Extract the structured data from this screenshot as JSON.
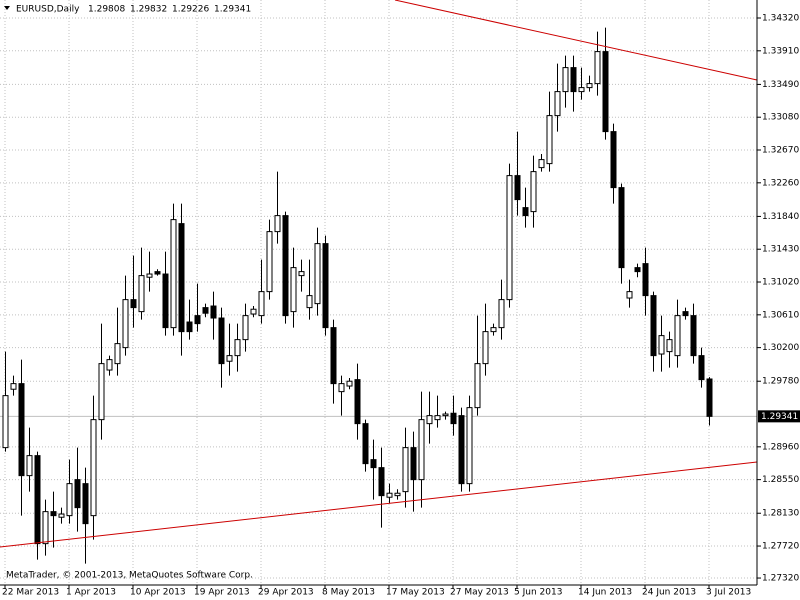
{
  "chart_data": {
    "type": "candlestick",
    "title": "EURUSD,Daily",
    "footer": "MetaTrader, © 2001-2013, MetaQuotes Software Corp.",
    "categories": [
      "22 Mar 2013",
      null,
      null,
      null,
      null,
      null,
      null,
      null,
      "1 Apr 2013",
      null,
      null,
      null,
      null,
      null,
      null,
      null,
      "10 Apr 2013",
      null,
      null,
      null,
      null,
      null,
      null,
      null,
      "19 Apr 2013",
      null,
      null,
      null,
      null,
      null,
      null,
      null,
      "29 Apr 2013",
      null,
      null,
      null,
      null,
      null,
      null,
      null,
      "8 May 2013",
      null,
      null,
      null,
      null,
      null,
      null,
      null,
      "17 May 2013",
      null,
      null,
      null,
      null,
      null,
      null,
      null,
      "27 May 2013",
      null,
      null,
      null,
      null,
      null,
      null,
      null,
      "5 Jun 2013",
      null,
      null,
      null,
      null,
      null,
      null,
      null,
      "14 Jun 2013",
      null,
      null,
      null,
      null,
      null,
      null,
      null,
      "24 Jun 2013",
      null,
      null,
      null,
      null,
      null,
      null,
      null,
      "3 Jul 2013"
    ],
    "open": [
      1.2895,
      1.2968,
      1.2975,
      1.286,
      1.2885,
      1.2775,
      1.2815,
      1.2808,
      1.281,
      1.2855,
      1.285,
      1.281,
      1.293,
      1.2992,
      1.3,
      1.302,
      1.308,
      1.3065,
      1.3108,
      1.3115,
      1.3112,
      1.3045,
      1.3175,
      1.3052,
      1.306,
      1.307,
      1.3072,
      1.3057,
      1.3003,
      1.301,
      1.303,
      1.3062,
      1.306,
      1.309,
      1.3165,
      1.3185,
      1.3065,
      1.311,
      1.307,
      1.3075,
      1.315,
      1.3045,
      1.2965,
      1.2972,
      1.298,
      1.2925,
      1.288,
      1.287,
      1.2833,
      1.2835,
      1.284,
      1.2895,
      1.2855,
      1.2925,
      1.293,
      1.2935,
      1.2938,
      1.2935,
      1.285,
      1.2945,
      1.3,
      1.304,
      1.3045,
      1.308,
      1.3235,
      1.3195,
      1.319,
      1.3245,
      1.325,
      1.331,
      1.334,
      1.337,
      1.334,
      1.3345,
      1.335,
      1.339,
      1.329,
      1.322,
      1.3082,
      1.312,
      1.3125,
      1.3085,
      1.3012,
      1.3015,
      1.301,
      1.3065,
      1.306,
      1.301,
      1.29808
    ],
    "high": [
      1.3015,
      1.2985,
      1.3005,
      1.292,
      1.289,
      1.283,
      1.284,
      1.282,
      1.288,
      1.2895,
      1.287,
      1.296,
      1.305,
      1.301,
      1.307,
      1.311,
      1.3135,
      1.3145,
      1.314,
      1.3118,
      1.314,
      1.32,
      1.32,
      1.308,
      1.31,
      1.3075,
      1.309,
      1.307,
      1.305,
      1.305,
      1.3075,
      1.3072,
      1.313,
      1.318,
      1.324,
      1.319,
      1.3145,
      1.313,
      1.313,
      1.317,
      1.316,
      1.3055,
      1.2985,
      1.2982,
      1.3,
      1.293,
      1.2905,
      1.2895,
      1.285,
      1.2843,
      1.292,
      1.2915,
      1.2965,
      1.2965,
      1.296,
      1.294,
      1.296,
      1.2945,
      1.296,
      1.306,
      1.3075,
      1.305,
      1.3105,
      1.325,
      1.329,
      1.322,
      1.326,
      1.3262,
      1.334,
      1.3375,
      1.3385,
      1.3385,
      1.337,
      1.336,
      1.3415,
      1.342,
      1.33,
      1.3225,
      1.3105,
      1.3125,
      1.3145,
      1.309,
      1.306,
      1.304,
      1.308,
      1.307,
      1.3075,
      1.302,
      1.29832
    ],
    "low": [
      1.289,
      1.296,
      1.281,
      1.284,
      1.2755,
      1.276,
      1.277,
      1.28,
      1.28,
      1.279,
      1.275,
      1.278,
      1.2905,
      1.2985,
      1.2985,
      1.301,
      1.3045,
      1.3055,
      1.309,
      1.311,
      1.3035,
      1.3035,
      1.301,
      1.303,
      1.304,
      1.3058,
      1.303,
      1.297,
      1.2985,
      1.299,
      1.3015,
      1.3058,
      1.305,
      1.308,
      1.315,
      1.305,
      1.3045,
      1.309,
      1.3055,
      1.306,
      1.3035,
      1.295,
      1.2935,
      1.2968,
      1.2905,
      1.2865,
      1.283,
      1.2795,
      1.2825,
      1.283,
      1.282,
      1.2815,
      1.282,
      1.29,
      1.292,
      1.293,
      1.291,
      1.284,
      1.284,
      1.2935,
      1.2985,
      1.3035,
      1.303,
      1.307,
      1.3185,
      1.317,
      1.317,
      1.324,
      1.324,
      1.329,
      1.332,
      1.3315,
      1.333,
      1.334,
      1.3335,
      1.328,
      1.32,
      1.31,
      1.307,
      1.3108,
      1.306,
      1.299,
      1.299,
      1.2995,
      1.2995,
      1.3055,
      1.3,
      1.297,
      1.29226
    ],
    "close": [
      1.296,
      1.2975,
      1.286,
      1.2885,
      1.2775,
      1.2815,
      1.281,
      1.2812,
      1.285,
      1.282,
      1.28,
      1.293,
      1.3,
      1.3005,
      1.3025,
      1.308,
      1.307,
      1.311,
      1.3112,
      1.3112,
      1.3045,
      1.318,
      1.304,
      1.304,
      1.305,
      1.3063,
      1.3057,
      1.3,
      1.301,
      1.303,
      1.306,
      1.3068,
      1.309,
      1.3165,
      1.3185,
      1.306,
      1.312,
      1.3115,
      1.3085,
      1.315,
      1.3045,
      1.2975,
      1.2975,
      1.2978,
      1.2925,
      1.2875,
      1.287,
      1.2835,
      1.2838,
      1.2838,
      1.2895,
      1.2855,
      1.293,
      1.2935,
      1.2935,
      1.2937,
      1.2925,
      1.285,
      1.2945,
      1.3,
      1.304,
      1.3045,
      1.308,
      1.3235,
      1.3205,
      1.3185,
      1.324,
      1.3255,
      1.331,
      1.334,
      1.337,
      1.334,
      1.3345,
      1.335,
      1.339,
      1.329,
      1.322,
      1.312,
      1.309,
      1.3115,
      1.3085,
      1.301,
      1.3035,
      1.303,
      1.306,
      1.306,
      1.301,
      1.298,
      1.29341
    ],
    "ylim": [
      1.27233,
      1.34545
    ],
    "yticks": [
      {
        "value": 1.3432,
        "label": "1.34320"
      },
      {
        "value": 1.3391,
        "label": "1.33910"
      },
      {
        "value": 1.3349,
        "label": "1.33490"
      },
      {
        "value": 1.3308,
        "label": "1.33080"
      },
      {
        "value": 1.3267,
        "label": "1.32670"
      },
      {
        "value": 1.3226,
        "label": "1.32260"
      },
      {
        "value": 1.3184,
        "label": "1.31840"
      },
      {
        "value": 1.3143,
        "label": "1.31430"
      },
      {
        "value": 1.3102,
        "label": "1.31020"
      },
      {
        "value": 1.3061,
        "label": "1.30610"
      },
      {
        "value": 1.302,
        "label": "1.30200"
      },
      {
        "value": 1.2978,
        "label": "1.29780"
      },
      {
        "value": 1.2896,
        "label": "1.28960"
      },
      {
        "value": 1.2855,
        "label": "1.28550"
      },
      {
        "value": 1.2813,
        "label": "1.28130"
      },
      {
        "value": 1.2772,
        "label": "1.27720"
      },
      {
        "value": 1.2732,
        "label": "1.27320"
      }
    ],
    "grid": true,
    "up_color": "#ffffff",
    "down_color": "#000000",
    "line_color": "#000000",
    "trendline_color": "#cc0000"
  }
}
